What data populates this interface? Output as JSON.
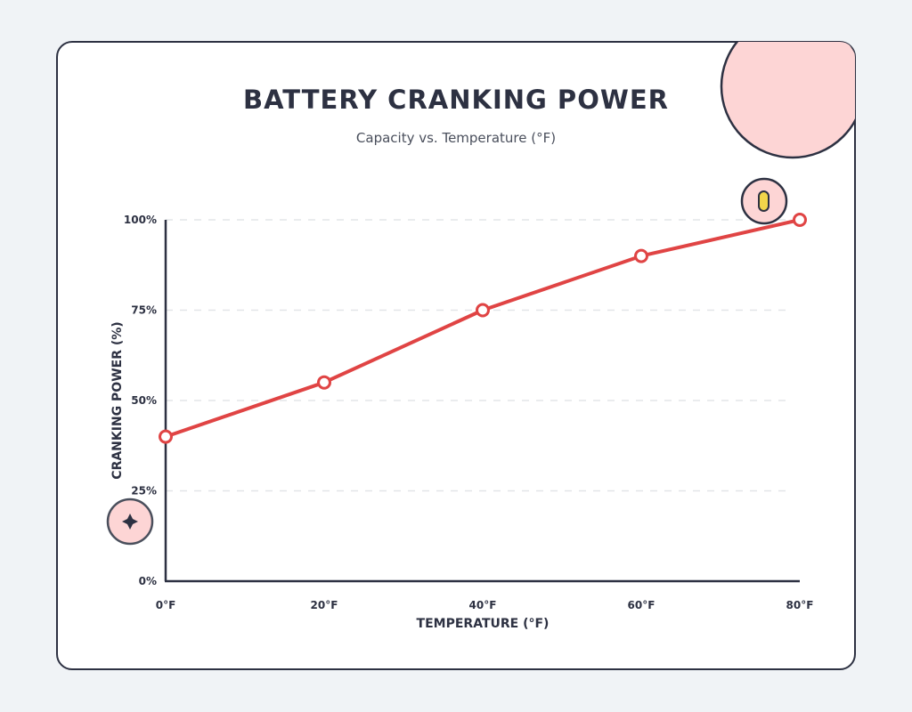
{
  "chart_data": {
    "type": "line",
    "title": "BATTERY CRANKING POWER",
    "subtitle": "Capacity vs. Temperature (°F)",
    "xlabel": "TEMPERATURE (°F)",
    "ylabel": "CRANKING POWER (%)",
    "categories": [
      "0°F",
      "20°F",
      "40°F",
      "60°F",
      "80°F"
    ],
    "x": [
      0,
      20,
      40,
      60,
      80
    ],
    "values": [
      40,
      55,
      75,
      90,
      100
    ],
    "yticks": [
      "0%",
      "25%",
      "50%",
      "75%",
      "100%"
    ],
    "ytick_values": [
      0,
      25,
      50,
      75,
      100
    ],
    "ylim": [
      0,
      100
    ],
    "xlim": [
      0,
      80
    ],
    "grid": "horizontal dashed",
    "colors": {
      "line": "#e04444",
      "axis": "#2d3142",
      "accent": "#fdd5d5",
      "background": "#f0f3f6"
    }
  }
}
